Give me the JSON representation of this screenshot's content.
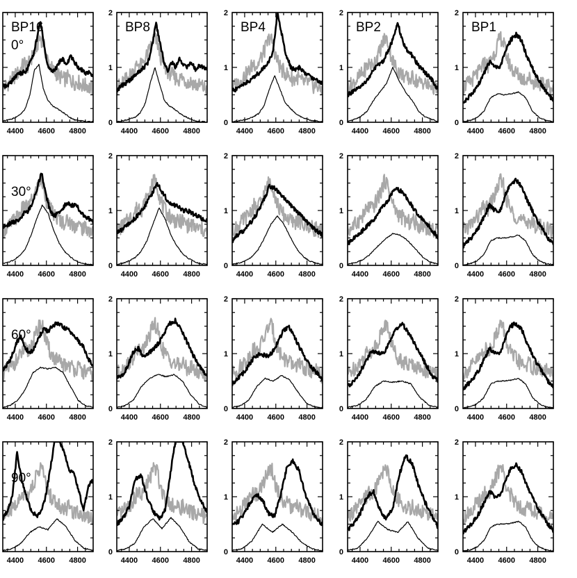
{
  "chart_data": {
    "type": "line",
    "description_grid": "4 rows (viewing angle) x 5 columns (BP model)",
    "columns": [
      "BP16",
      "BP8",
      "BP4",
      "BP2",
      "BP1"
    ],
    "rows": [
      "0°",
      "30°",
      "60°",
      "90°"
    ],
    "x_ticks": [
      4400,
      4600,
      4800
    ],
    "xlim": [
      4320,
      4900
    ],
    "y_ticks": [
      0,
      1,
      2
    ],
    "ylim": [
      0,
      2
    ],
    "grid": false,
    "series_styles": [
      {
        "id": "observed",
        "color": "#a8a8a8",
        "width": 2.2
      },
      {
        "id": "model_smoothed",
        "color": "#000000",
        "width": 2.6
      },
      {
        "id": "model_intrinsic",
        "color": "#000000",
        "width": 1.2
      }
    ],
    "observed_spectrum": {
      "x": [
        4320,
        4340,
        4360,
        4380,
        4400,
        4420,
        4440,
        4460,
        4480,
        4500,
        4520,
        4540,
        4560,
        4580,
        4600,
        4620,
        4640,
        4660,
        4680,
        4700,
        4720,
        4740,
        4760,
        4780,
        4800,
        4820,
        4840,
        4860,
        4880,
        4900
      ],
      "y": [
        0.62,
        0.68,
        0.72,
        0.78,
        0.85,
        0.9,
        1.0,
        1.08,
        1.02,
        1.15,
        1.25,
        1.4,
        1.55,
        1.45,
        1.2,
        1.05,
        0.95,
        0.9,
        0.85,
        0.8,
        0.78,
        0.82,
        0.76,
        0.72,
        0.74,
        0.7,
        0.66,
        0.68,
        0.62,
        0.6
      ]
    },
    "panels": [
      {
        "row": "0°",
        "column": "BP16",
        "model_smoothed": [
          0.65,
          0.65,
          0.72,
          0.8,
          0.88,
          0.9,
          0.92,
          1.05,
          1.2,
          1.5,
          1.85,
          1.4,
          1.0,
          0.95,
          0.96,
          1.1,
          1.15,
          1.05,
          1.2,
          1.1,
          1.0,
          0.95,
          0.9,
          0.92,
          0.85
        ],
        "model_intrinsic": [
          0.02,
          0.04,
          0.06,
          0.1,
          0.15,
          0.25,
          0.5,
          0.95,
          1.05,
          0.6,
          0.4,
          0.3,
          0.25,
          0.2,
          0.14,
          0.08,
          0.04,
          0.03,
          0.02,
          0.01,
          0.01
        ]
      },
      {
        "row": "0°",
        "column": "BP8",
        "model_smoothed": [
          0.58,
          0.65,
          0.7,
          0.75,
          0.8,
          0.88,
          0.95,
          1.0,
          1.1,
          1.4,
          1.8,
          1.45,
          1.1,
          0.95,
          1.1,
          1.0,
          1.15,
          1.05,
          1.0,
          1.1,
          0.95,
          1.05,
          1.0,
          0.98
        ],
        "model_intrinsic": [
          0.01,
          0.02,
          0.04,
          0.07,
          0.1,
          0.18,
          0.35,
          0.7,
          1.0,
          0.7,
          0.4,
          0.3,
          0.25,
          0.18,
          0.12,
          0.08,
          0.04,
          0.02,
          0.01,
          0.01
        ]
      },
      {
        "row": "0°",
        "column": "BP4",
        "model_smoothed": [
          0.58,
          0.6,
          0.68,
          0.72,
          0.75,
          0.85,
          0.9,
          1.0,
          1.1,
          1.25,
          2.0,
          1.6,
          1.2,
          1.0,
          0.95,
          1.0,
          0.9,
          0.85,
          0.8,
          0.75,
          0.72
        ],
        "model_intrinsic": [
          0.01,
          0.02,
          0.04,
          0.06,
          0.1,
          0.16,
          0.3,
          0.6,
          0.85,
          0.6,
          0.35,
          0.25,
          0.15,
          0.1,
          0.06,
          0.03,
          0.02,
          0.01
        ]
      },
      {
        "row": "0°",
        "column": "BP2",
        "model_smoothed": [
          0.5,
          0.55,
          0.6,
          0.68,
          0.78,
          0.92,
          1.05,
          1.1,
          1.3,
          1.5,
          1.8,
          1.45,
          1.3,
          1.2,
          1.05,
          0.95,
          0.85,
          0.75,
          0.6
        ],
        "model_intrinsic": [
          0.02,
          0.05,
          0.1,
          0.2,
          0.4,
          0.55,
          0.7,
          1.0,
          0.75,
          0.55,
          0.4,
          0.2,
          0.1,
          0.05,
          0.02
        ]
      },
      {
        "row": "0°",
        "column": "BP1",
        "model_smoothed": [
          0.35,
          0.45,
          0.55,
          0.7,
          0.9,
          1.1,
          1.0,
          1.0,
          1.3,
          1.5,
          1.6,
          1.5,
          1.2,
          1.0,
          0.8,
          0.65,
          0.5,
          0.4
        ],
        "model_intrinsic": [
          0.01,
          0.03,
          0.08,
          0.2,
          0.45,
          0.52,
          0.5,
          0.52,
          0.55,
          0.45,
          0.2,
          0.08,
          0.03,
          0.01
        ]
      },
      {
        "row": "30°",
        "column": "BP16",
        "model_smoothed": [
          0.7,
          0.72,
          0.78,
          0.8,
          0.85,
          0.95,
          1.0,
          1.15,
          1.4,
          1.7,
          1.3,
          1.0,
          0.9,
          0.95,
          1.05,
          1.15,
          1.1,
          1.1,
          1.0,
          0.9,
          0.85,
          0.8
        ],
        "model_intrinsic": [
          0.03,
          0.06,
          0.1,
          0.18,
          0.3,
          0.55,
          0.85,
          1.1,
          0.95,
          0.65,
          0.4,
          0.25,
          0.15,
          0.08,
          0.04,
          0.02,
          0.01
        ]
      },
      {
        "row": "30°",
        "column": "BP8",
        "model_smoothed": [
          0.6,
          0.65,
          0.72,
          0.8,
          0.9,
          1.0,
          1.15,
          1.3,
          1.5,
          1.35,
          1.2,
          1.1,
          1.1,
          1.0,
          1.0,
          0.95,
          0.9,
          0.85,
          0.8
        ],
        "model_intrinsic": [
          0.02,
          0.04,
          0.08,
          0.14,
          0.25,
          0.45,
          0.75,
          1.05,
          0.85,
          0.55,
          0.35,
          0.2,
          0.12,
          0.06,
          0.03,
          0.02
        ]
      },
      {
        "row": "30°",
        "column": "BP4",
        "model_smoothed": [
          0.45,
          0.55,
          0.62,
          0.72,
          0.85,
          1.0,
          1.2,
          1.45,
          1.4,
          1.3,
          1.2,
          1.1,
          1.0,
          0.9,
          0.8,
          0.7,
          0.62,
          0.55
        ],
        "model_intrinsic": [
          0.02,
          0.04,
          0.08,
          0.15,
          0.28,
          0.5,
          0.75,
          0.9,
          0.75,
          0.52,
          0.3,
          0.16,
          0.08,
          0.04,
          0.02
        ]
      },
      {
        "row": "30°",
        "column": "BP2",
        "model_smoothed": [
          0.4,
          0.48,
          0.55,
          0.65,
          0.75,
          0.85,
          1.0,
          1.1,
          1.25,
          1.4,
          1.35,
          1.25,
          1.1,
          0.95,
          0.85,
          0.75,
          0.62,
          0.52
        ],
        "model_intrinsic": [
          0.02,
          0.05,
          0.1,
          0.2,
          0.35,
          0.48,
          0.58,
          0.55,
          0.45,
          0.3,
          0.15,
          0.06,
          0.02
        ]
      },
      {
        "row": "30°",
        "column": "BP1",
        "model_smoothed": [
          0.35,
          0.45,
          0.55,
          0.7,
          0.9,
          1.1,
          1.0,
          1.0,
          1.3,
          1.5,
          1.55,
          1.45,
          1.2,
          1.0,
          0.8,
          0.65,
          0.5,
          0.38
        ],
        "model_intrinsic": [
          0.01,
          0.03,
          0.08,
          0.2,
          0.45,
          0.5,
          0.5,
          0.52,
          0.55,
          0.45,
          0.2,
          0.08,
          0.03,
          0.01
        ]
      },
      {
        "row": "60°",
        "column": "BP16",
        "model_smoothed": [
          0.7,
          0.8,
          0.95,
          1.2,
          1.3,
          1.1,
          1.0,
          1.1,
          1.3,
          1.45,
          1.4,
          1.5,
          1.55,
          1.5,
          1.45,
          1.4,
          1.3,
          1.2,
          1.1,
          0.9,
          0.75
        ],
        "model_intrinsic": [
          0.02,
          0.06,
          0.15,
          0.35,
          0.65,
          0.75,
          0.72,
          0.75,
          0.65,
          0.4,
          0.15,
          0.05,
          0.02
        ]
      },
      {
        "row": "60°",
        "column": "BP8",
        "model_smoothed": [
          0.55,
          0.6,
          0.75,
          1.0,
          1.1,
          0.95,
          1.0,
          1.1,
          1.2,
          1.4,
          1.55,
          1.6,
          1.45,
          1.25,
          1.05,
          0.85,
          0.7,
          0.6
        ],
        "model_intrinsic": [
          0.02,
          0.05,
          0.15,
          0.4,
          0.55,
          0.62,
          0.58,
          0.62,
          0.5,
          0.25,
          0.08,
          0.02
        ]
      },
      {
        "row": "60°",
        "column": "BP4",
        "model_smoothed": [
          0.45,
          0.55,
          0.65,
          0.8,
          0.95,
          1.0,
          0.95,
          1.0,
          1.2,
          1.4,
          1.5,
          1.3,
          1.1,
          0.9,
          0.75,
          0.65,
          0.55
        ],
        "model_intrinsic": [
          0.02,
          0.05,
          0.15,
          0.4,
          0.55,
          0.5,
          0.6,
          0.52,
          0.3,
          0.1,
          0.03,
          0.01
        ]
      },
      {
        "row": "60°",
        "column": "BP2",
        "model_smoothed": [
          0.4,
          0.5,
          0.65,
          0.85,
          1.05,
          1.0,
          1.0,
          1.2,
          1.45,
          1.55,
          1.4,
          1.2,
          1.0,
          0.8,
          0.6,
          0.5
        ],
        "model_intrinsic": [
          0.02,
          0.05,
          0.15,
          0.4,
          0.5,
          0.48,
          0.5,
          0.45,
          0.2,
          0.06,
          0.02
        ]
      },
      {
        "row": "60°",
        "column": "BP1",
        "model_smoothed": [
          0.35,
          0.45,
          0.55,
          0.7,
          0.9,
          1.1,
          1.0,
          1.0,
          1.3,
          1.5,
          1.55,
          1.45,
          1.2,
          1.0,
          0.8,
          0.65,
          0.5,
          0.38
        ],
        "model_intrinsic": [
          0.01,
          0.03,
          0.08,
          0.2,
          0.45,
          0.5,
          0.5,
          0.52,
          0.55,
          0.45,
          0.2,
          0.08,
          0.03,
          0.01
        ]
      },
      {
        "row": "90°",
        "column": "BP16",
        "model_smoothed": [
          0.6,
          0.75,
          1.0,
          1.8,
          1.3,
          1.0,
          0.75,
          0.65,
          0.7,
          1.0,
          1.5,
          2.1,
          2.0,
          1.8,
          1.5,
          1.4,
          1.1,
          0.75,
          1.2,
          1.3
        ],
        "model_intrinsic": [
          0.02,
          0.05,
          0.15,
          0.35,
          0.45,
          0.4,
          0.6,
          0.45,
          0.2,
          0.06,
          0.02
        ]
      },
      {
        "row": "90°",
        "column": "BP8",
        "model_smoothed": [
          0.5,
          0.6,
          0.8,
          1.3,
          1.4,
          1.0,
          0.75,
          0.6,
          0.75,
          1.5,
          2.2,
          2.0,
          1.6,
          1.2,
          0.9,
          0.75
        ],
        "model_intrinsic": [
          0.02,
          0.05,
          0.15,
          0.45,
          0.6,
          0.42,
          0.62,
          0.45,
          0.18,
          0.05,
          0.02
        ]
      },
      {
        "row": "90°",
        "column": "BP4",
        "model_smoothed": [
          0.5,
          0.55,
          0.7,
          0.9,
          1.05,
          0.95,
          0.7,
          0.65,
          1.0,
          1.5,
          1.65,
          1.5,
          1.1,
          0.8,
          0.6,
          0.5
        ],
        "model_intrinsic": [
          0.02,
          0.05,
          0.2,
          0.5,
          0.35,
          0.5,
          0.35,
          0.15,
          0.05,
          0.01
        ]
      },
      {
        "row": "90°",
        "column": "BP2",
        "model_smoothed": [
          0.4,
          0.5,
          0.7,
          1.0,
          1.1,
          0.75,
          0.6,
          0.8,
          1.4,
          1.75,
          1.6,
          1.2,
          0.9,
          0.65,
          0.45
        ],
        "model_intrinsic": [
          0.02,
          0.06,
          0.25,
          0.55,
          0.4,
          0.35,
          0.55,
          0.25,
          0.06,
          0.02
        ]
      },
      {
        "row": "90°",
        "column": "BP1",
        "model_smoothed": [
          0.35,
          0.45,
          0.55,
          0.7,
          0.9,
          1.1,
          1.0,
          1.0,
          1.3,
          1.5,
          1.6,
          1.45,
          1.2,
          1.0,
          0.8,
          0.65,
          0.5,
          0.38
        ],
        "model_intrinsic": [
          0.01,
          0.03,
          0.08,
          0.2,
          0.45,
          0.5,
          0.5,
          0.52,
          0.55,
          0.45,
          0.2,
          0.08,
          0.03,
          0.01
        ]
      }
    ]
  }
}
